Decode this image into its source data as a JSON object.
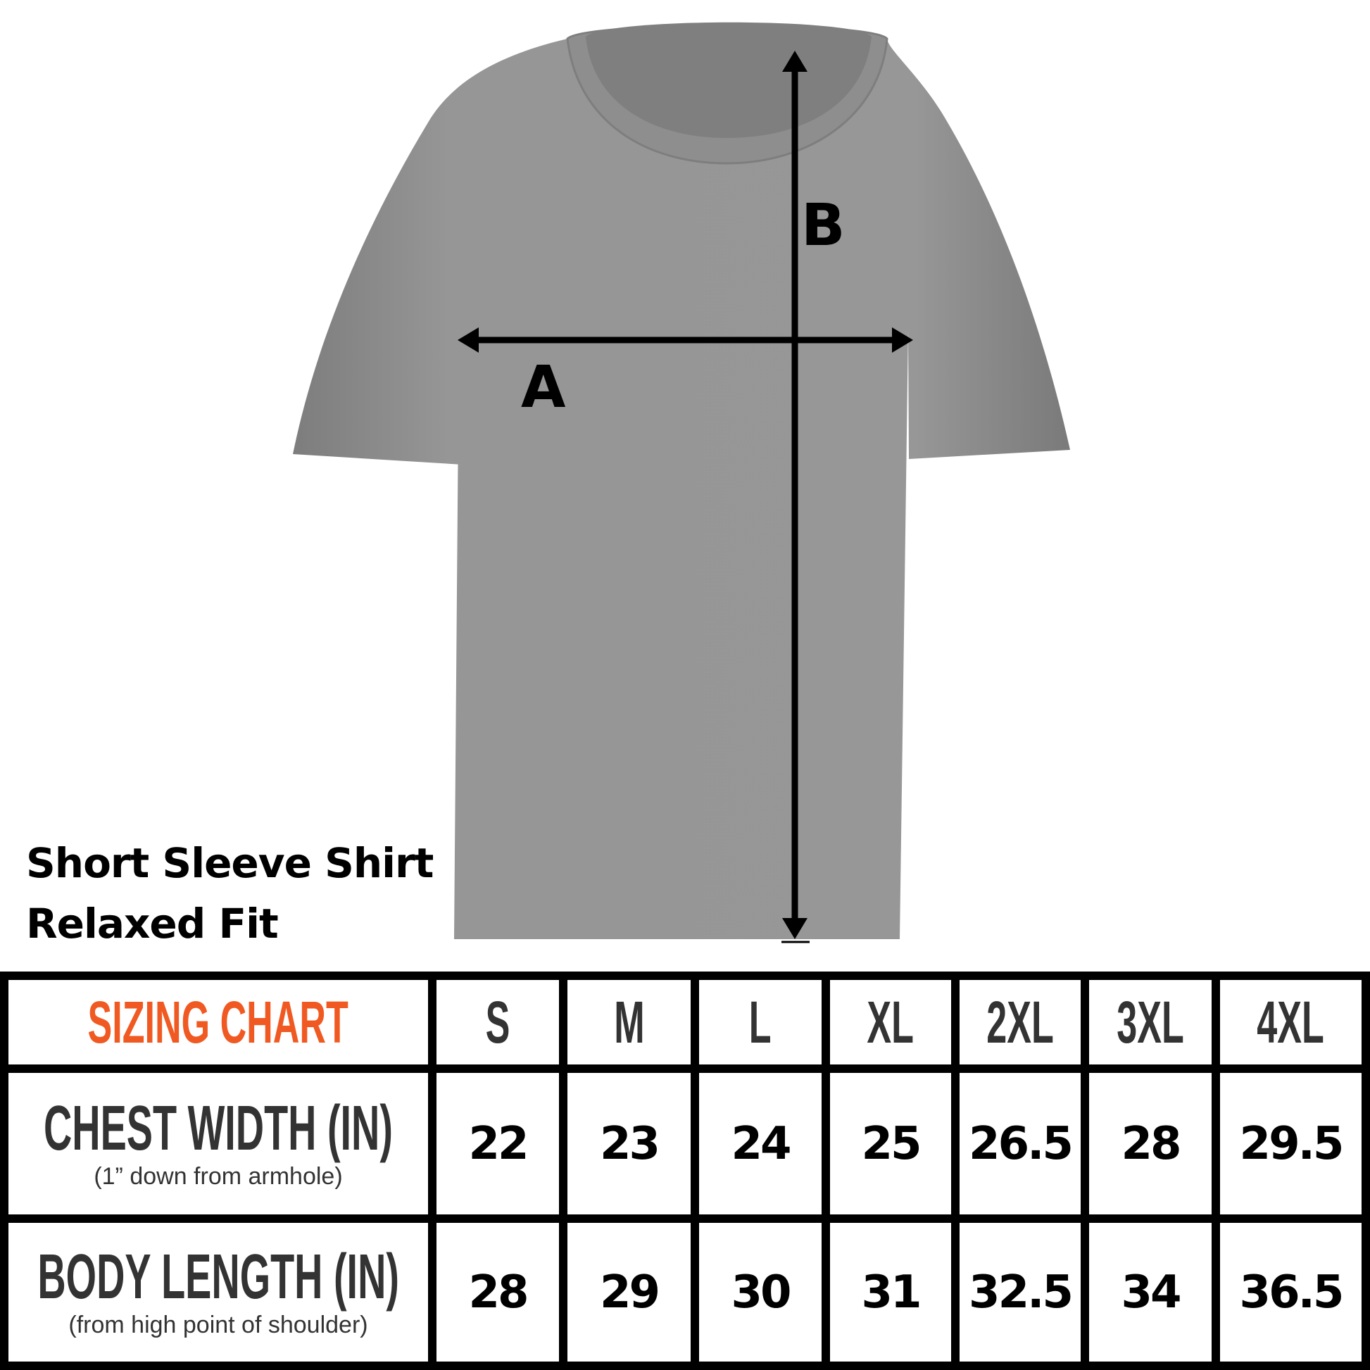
{
  "labels": {
    "title_line1": "Short Sleeve Shirt",
    "title_line2": "Relaxed Fit",
    "measure_a": "A",
    "measure_b": "B"
  },
  "colors": {
    "shirt": "#959595",
    "accent": "#f05a22"
  },
  "table": {
    "corner": "SIZING CHART",
    "sizes": [
      "S",
      "M",
      "L",
      "XL",
      "2XL",
      "3XL",
      "4XL"
    ],
    "rows": [
      {
        "label": "CHEST WIDTH (IN)",
        "note": "(1” down from armhole)",
        "values": [
          "22",
          "23",
          "24",
          "25",
          "26.5",
          "28",
          "29.5"
        ]
      },
      {
        "label": "BODY LENGTH (IN)",
        "note": "(from high point of shoulder)",
        "values": [
          "28",
          "29",
          "30",
          "31",
          "32.5",
          "34",
          "36.5"
        ]
      }
    ]
  }
}
